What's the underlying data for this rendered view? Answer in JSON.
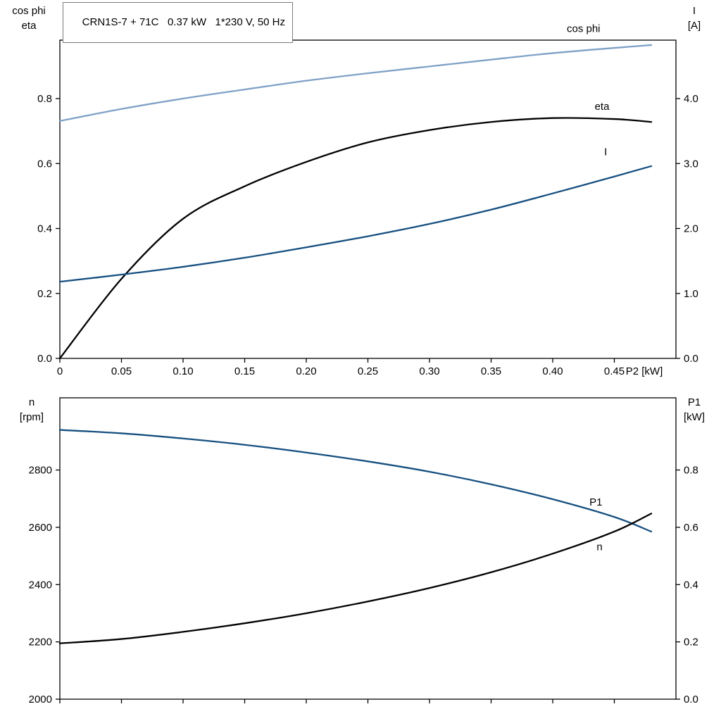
{
  "title_box": {
    "text": "CRN1S-7 + 71C   0.37 kW   1*230 V, 50 Hz"
  },
  "colors": {
    "cos_phi": "#7FA1C6",
    "current": "#164F80",
    "eta": "#000000",
    "speed": "#164F80",
    "p1": "#000000",
    "axis": "#000000"
  },
  "chart_data": [
    {
      "type": "line",
      "title": "CRN1S-7 + 71C   0.37 kW   1*230 V, 50 Hz",
      "xlabel": "P2 [kW]",
      "xlim": [
        0,
        0.5
      ],
      "x_ticks": [
        0,
        0.05,
        0.1,
        0.15,
        0.2,
        0.25,
        0.3,
        0.35,
        0.4,
        0.45
      ],
      "x_tick_labels": [
        "0",
        "0.05",
        "0.10",
        "0.15",
        "0.20",
        "0.25",
        "0.30",
        "0.35",
        "0.40",
        "0.45"
      ],
      "grid": false,
      "left_axis": {
        "label_lines": [
          "cos phi",
          "eta"
        ],
        "lim": [
          0,
          0.98
        ],
        "ticks": [
          0,
          0.2,
          0.4,
          0.6,
          0.8
        ],
        "tick_labels": [
          "0.0",
          "0.2",
          "0.4",
          "0.6",
          "0.8"
        ]
      },
      "right_axis": {
        "label_lines": [
          "I",
          "[A]"
        ],
        "lim": [
          0,
          4.9
        ],
        "ticks": [
          0,
          1,
          2,
          3,
          4
        ],
        "tick_labels": [
          "0.0",
          "1.0",
          "2.0",
          "3.0",
          "4.0"
        ]
      },
      "x": [
        0,
        0.05,
        0.1,
        0.15,
        0.2,
        0.25,
        0.3,
        0.35,
        0.4,
        0.45,
        0.48
      ],
      "series": [
        {
          "name": "cos phi",
          "axis": "left",
          "color": "#7FA1C6",
          "values": [
            0.731,
            0.768,
            0.8,
            0.828,
            0.855,
            0.878,
            0.899,
            0.92,
            0.94,
            0.956,
            0.965
          ],
          "label": "cos phi",
          "label_x": 0.425,
          "label_y": 1.005
        },
        {
          "name": "eta",
          "axis": "left",
          "color": "#000000",
          "values": [
            0.0,
            0.245,
            0.43,
            0.53,
            0.605,
            0.665,
            0.703,
            0.728,
            0.74,
            0.737,
            0.728
          ],
          "label": "eta",
          "label_x": 0.44,
          "label_y": 0.765
        },
        {
          "name": "I",
          "axis": "right",
          "color": "#164F80",
          "values": [
            1.18,
            1.29,
            1.41,
            1.55,
            1.71,
            1.88,
            2.07,
            2.29,
            2.54,
            2.8,
            2.96
          ],
          "label": "I",
          "label_x": 0.443,
          "label_y": 3.13
        }
      ]
    },
    {
      "type": "line",
      "title": "",
      "xlabel": "",
      "xlim": [
        0,
        0.5
      ],
      "x_ticks": [
        0,
        0.05,
        0.1,
        0.15,
        0.2,
        0.25,
        0.3,
        0.35,
        0.4,
        0.45
      ],
      "x_tick_labels": [],
      "grid": false,
      "left_axis": {
        "label_lines": [
          "n",
          "[rpm]"
        ],
        "lim": [
          2000,
          3052
        ],
        "ticks": [
          2000,
          2200,
          2400,
          2600,
          2800
        ],
        "tick_labels": [
          "2000",
          "2200",
          "2400",
          "2600",
          "2800"
        ]
      },
      "right_axis": {
        "label_lines": [
          "P1",
          "[kW]"
        ],
        "lim": [
          0,
          1.052
        ],
        "ticks": [
          0,
          0.2,
          0.4,
          0.6,
          0.8
        ],
        "tick_labels": [
          "0.0",
          "0.2",
          "0.4",
          "0.6",
          "0.8"
        ]
      },
      "x": [
        0,
        0.05,
        0.1,
        0.15,
        0.2,
        0.25,
        0.3,
        0.35,
        0.4,
        0.45,
        0.48
      ],
      "series": [
        {
          "name": "n",
          "axis": "left",
          "color": "#164F80",
          "values": [
            2940,
            2928,
            2910,
            2888,
            2861,
            2830,
            2794,
            2750,
            2698,
            2636,
            2585
          ],
          "label": "n",
          "label_x": 0.438,
          "label_y": 2520
        },
        {
          "name": "P1",
          "axis": "right",
          "color": "#000000",
          "values": [
            0.195,
            0.21,
            0.235,
            0.265,
            0.3,
            0.341,
            0.388,
            0.443,
            0.508,
            0.585,
            0.648
          ],
          "label": "P1",
          "label_x": 0.435,
          "label_y": 0.676
        }
      ]
    }
  ]
}
